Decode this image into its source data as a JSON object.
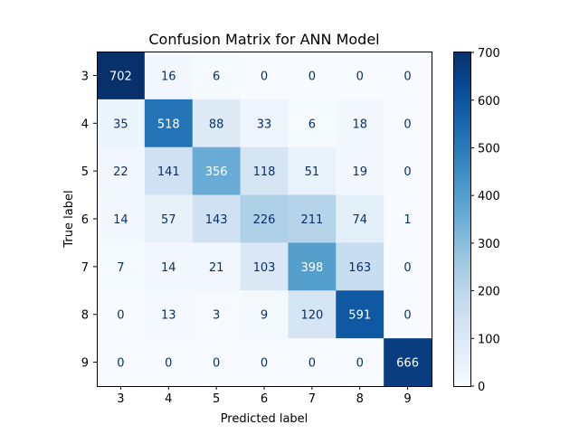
{
  "chart_data": {
    "type": "heatmap",
    "title": "Confusion Matrix for ANN Model",
    "xlabel": "Predicted label",
    "ylabel": "True label",
    "x_categories": [
      "3",
      "4",
      "5",
      "6",
      "7",
      "8",
      "9"
    ],
    "y_categories": [
      "3",
      "4",
      "5",
      "6",
      "7",
      "8",
      "9"
    ],
    "values": [
      [
        702,
        16,
        6,
        0,
        0,
        0,
        0
      ],
      [
        35,
        518,
        88,
        33,
        6,
        18,
        0
      ],
      [
        22,
        141,
        356,
        118,
        51,
        19,
        0
      ],
      [
        14,
        57,
        143,
        226,
        211,
        74,
        1
      ],
      [
        7,
        14,
        21,
        103,
        398,
        163,
        0
      ],
      [
        0,
        13,
        3,
        9,
        120,
        591,
        0
      ],
      [
        0,
        0,
        0,
        0,
        0,
        0,
        666
      ]
    ],
    "colormap": "Blues",
    "color_range": [
      0,
      702
    ],
    "colorbar": {
      "ticks": [
        0,
        100,
        200,
        300,
        400,
        500,
        600,
        700
      ]
    },
    "grid": false
  }
}
